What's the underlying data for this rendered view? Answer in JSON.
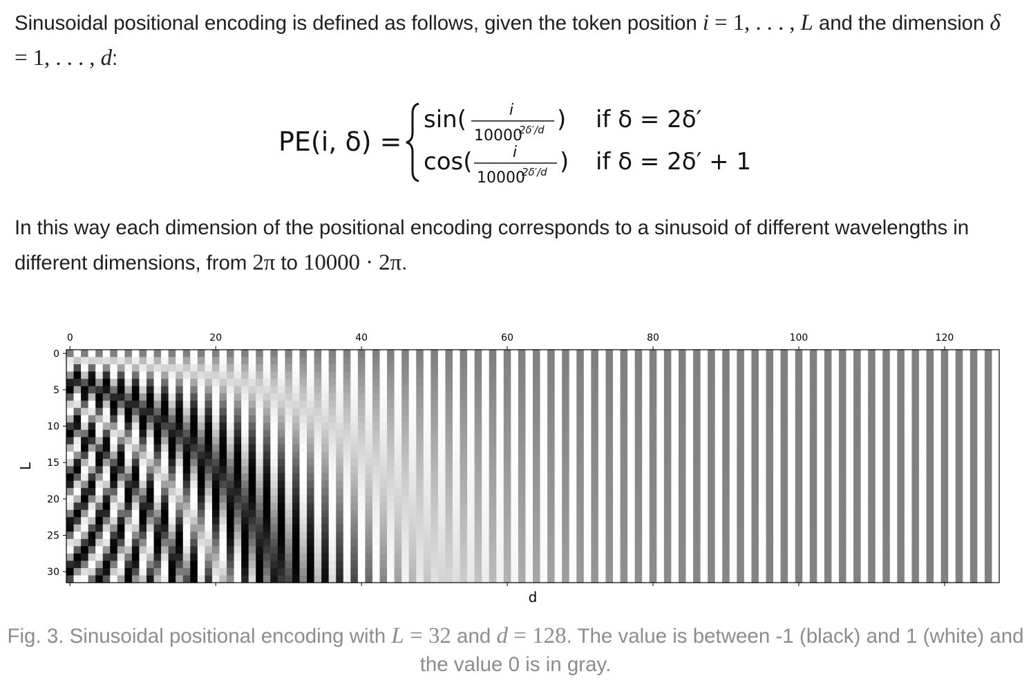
{
  "paragraph1": {
    "text_a": "Sinusoidal positional encoding is defined as follows, given the token position ",
    "math_i": "i",
    "math_eq": " = 1, . . . , ",
    "math_L": "L",
    "text_b": " and the dimension ",
    "math_delta": "δ",
    "math_eq2": " = 1, . . . , ",
    "math_d": "d",
    "text_c": ":"
  },
  "formula": {
    "lhs": "PE(i, δ) =",
    "row1_func": "sin(",
    "row1_num": "i",
    "row1_den_base": "10000",
    "row1_den_exp": "2δ′/d",
    "row1_close": ")",
    "row1_cond": "if δ = 2δ′",
    "row2_func": "cos(",
    "row2_num": "i",
    "row2_den_base": "10000",
    "row2_den_exp": "2δ′/d",
    "row2_close": ")",
    "row2_cond": "if δ = 2δ′ + 1"
  },
  "paragraph2": {
    "text_a": "In this way each dimension of the positional encoding corresponds to a sinusoid of different wavelengths in different dimensions, from ",
    "math_a": "2π",
    "text_b": " to ",
    "math_b": "10000 · 2π",
    "text_c": "."
  },
  "chart_data": {
    "type": "heatmap",
    "description_formula": "PE(i, δ): sin(i / 10000^(2δ′/d)) if δ = 2δ′, cos(i / 10000^(2δ′/d)) if δ = 2δ′ + 1",
    "rows": 32,
    "cols": 128,
    "value_range": [
      -1,
      1
    ],
    "colormap": "gray (black = -1, white = 1)",
    "xlabel": "d",
    "ylabel": "L",
    "x_ticks": [
      0,
      20,
      40,
      60,
      80,
      100,
      120
    ],
    "y_ticks": [
      0,
      5,
      10,
      15,
      20,
      25,
      30
    ],
    "x_tick_position": "top"
  },
  "caption": {
    "text_a": "Fig. 3. Sinusoidal positional encoding with ",
    "math_L": "L",
    "math_eq1": " = 32",
    "text_b": " and ",
    "math_d": "d",
    "math_eq2": " = 128",
    "text_c": ". The value is between -1 (black) and 1 (white) and the value 0 is in gray."
  }
}
